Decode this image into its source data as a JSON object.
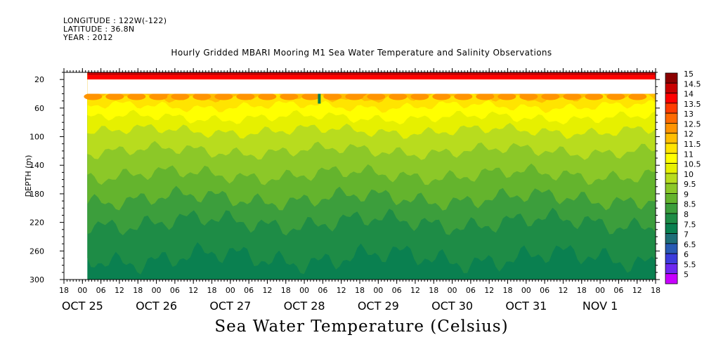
{
  "header": {
    "longitude": "LONGITUDE : 122W(-122)",
    "latitude": "LATITUDE : 36.8N",
    "year": "YEAR : 2012",
    "title": "Hourly Gridded MBARI Mooring M1 Sea Water Temperature and Salinity Observations"
  },
  "variable_label": "Sea Water Temperature (Celsius)",
  "chart_data": {
    "type": "heatmap",
    "title": "Hourly Gridded MBARI Mooring M1 Sea Water Temperature and Salinity Observations",
    "variable": "Sea Water Temperature (Celsius)",
    "ylabel": "DEPTH (m)",
    "ylim": [
      300,
      10
    ],
    "y_inverted": true,
    "y_ticks": [
      20,
      60,
      100,
      140,
      180,
      220,
      260,
      300
    ],
    "x_hour_ticks": [
      "18",
      "00",
      "06",
      "12",
      "18",
      "00",
      "06",
      "12",
      "18",
      "00",
      "06",
      "12",
      "18",
      "00",
      "06",
      "12",
      "18",
      "00",
      "06",
      "12",
      "18",
      "00",
      "06",
      "12",
      "18",
      "00",
      "06",
      "12",
      "18",
      "00",
      "06",
      "12",
      "18"
    ],
    "x_day_labels": [
      "OCT 25",
      "OCT 26",
      "OCT 27",
      "OCT 28",
      "OCT 29",
      "OCT 30",
      "OCT 31",
      "NOV  1"
    ],
    "time_range": [
      "OCT 25 18:00",
      "NOV 1 18:00"
    ],
    "data_start": "OCT 26 00:00",
    "gap_depth_range_m": [
      20,
      40
    ],
    "colorbar": {
      "levels": [
        "15",
        "14.5",
        "14",
        "13.5",
        "13",
        "12.5",
        "12",
        "11.5",
        "11",
        "10.5",
        "10",
        "9.5",
        "9",
        "8.5",
        "8",
        "7.5",
        "7",
        "6.5",
        "6",
        "5.5",
        "5"
      ],
      "colors": [
        "#8b0000",
        "#c80000",
        "#ff0000",
        "#ff3c00",
        "#ff6a00",
        "#ff9400",
        "#ffbe00",
        "#ffe400",
        "#ffff00",
        "#e6f000",
        "#b8dc1e",
        "#8cc828",
        "#64b42d",
        "#3c9e3c",
        "#1e8c46",
        "#0a8050",
        "#1e6e78",
        "#285ab4",
        "#3c3cdc",
        "#6e28f0",
        "#c800ff"
      ]
    },
    "temperature_profile": [
      {
        "depth_m": 10,
        "temp_c": 14.7
      },
      {
        "depth_m": 40,
        "temp_c": 12.2
      },
      {
        "depth_m": 60,
        "temp_c": 11.4
      },
      {
        "depth_m": 80,
        "temp_c": 10.8
      },
      {
        "depth_m": 100,
        "temp_c": 10.3
      },
      {
        "depth_m": 120,
        "temp_c": 10.0
      },
      {
        "depth_m": 140,
        "temp_c": 9.7
      },
      {
        "depth_m": 160,
        "temp_c": 9.4
      },
      {
        "depth_m": 180,
        "temp_c": 9.1
      },
      {
        "depth_m": 200,
        "temp_c": 8.8
      },
      {
        "depth_m": 220,
        "temp_c": 8.5
      },
      {
        "depth_m": 240,
        "temp_c": 8.3
      },
      {
        "depth_m": 260,
        "temp_c": 8.1
      },
      {
        "depth_m": 280,
        "temp_c": 7.9
      },
      {
        "depth_m": 300,
        "temp_c": 7.6
      }
    ]
  }
}
